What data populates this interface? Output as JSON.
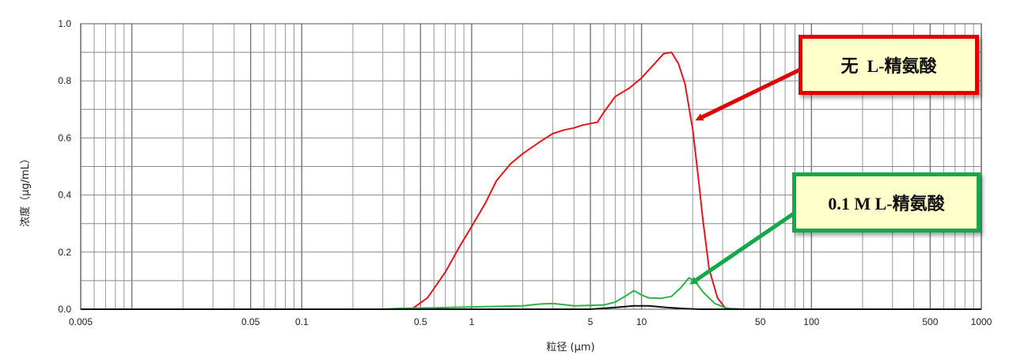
{
  "chart_data": {
    "type": "line",
    "xscale": "log",
    "xlabel": "粒径 (μm)",
    "ylabel": "浓度（μg/mL）",
    "xlim": [
      0.005,
      1000
    ],
    "ylim": [
      0,
      1.0
    ],
    "grid": true,
    "x_ticks": [
      {
        "value": 0.005,
        "label": "0.005"
      },
      {
        "value": 0.05,
        "label": "0.05"
      },
      {
        "value": 0.1,
        "label": "0.1"
      },
      {
        "value": 0.5,
        "label": "0.5"
      },
      {
        "value": 1,
        "label": "1"
      },
      {
        "value": 5,
        "label": "5"
      },
      {
        "value": 10,
        "label": "10"
      },
      {
        "value": 50,
        "label": "50"
      },
      {
        "value": 100,
        "label": "100"
      },
      {
        "value": 500,
        "label": "500"
      },
      {
        "value": 1000,
        "label": "1000"
      }
    ],
    "y_ticks": [
      {
        "value": 0.0,
        "label": "0.0"
      },
      {
        "value": 0.2,
        "label": "0.2"
      },
      {
        "value": 0.4,
        "label": "0.4"
      },
      {
        "value": 0.6,
        "label": "0.6"
      },
      {
        "value": 0.8,
        "label": "0.8"
      },
      {
        "value": 1.0,
        "label": "1.0"
      }
    ],
    "series": [
      {
        "color": "#e8141c",
        "points": [
          [
            0.005,
            0
          ],
          [
            0.3,
            0
          ],
          [
            0.45,
            0.003
          ],
          [
            0.55,
            0.04
          ],
          [
            0.7,
            0.13
          ],
          [
            0.85,
            0.22
          ],
          [
            1.0,
            0.29
          ],
          [
            1.2,
            0.37
          ],
          [
            1.4,
            0.45
          ],
          [
            1.7,
            0.51
          ],
          [
            2.0,
            0.545
          ],
          [
            2.5,
            0.585
          ],
          [
            3.0,
            0.615
          ],
          [
            3.5,
            0.628
          ],
          [
            4.0,
            0.635
          ],
          [
            4.5,
            0.645
          ],
          [
            5.5,
            0.655
          ],
          [
            6.0,
            0.69
          ],
          [
            7.0,
            0.745
          ],
          [
            8.5,
            0.775
          ],
          [
            10.0,
            0.81
          ],
          [
            11.5,
            0.85
          ],
          [
            13.5,
            0.895
          ],
          [
            15.0,
            0.9
          ],
          [
            16.5,
            0.86
          ],
          [
            18.0,
            0.79
          ],
          [
            20.0,
            0.63
          ],
          [
            21.5,
            0.47
          ],
          [
            23.0,
            0.31
          ],
          [
            25.0,
            0.14
          ],
          [
            28.0,
            0.04
          ],
          [
            31.0,
            0.005
          ],
          [
            35.0,
            0
          ],
          [
            1000,
            0
          ]
        ]
      },
      {
        "color": "#2cb34a",
        "points": [
          [
            0.005,
            0
          ],
          [
            0.3,
            0
          ],
          [
            0.38,
            0.003
          ],
          [
            0.6,
            0.005
          ],
          [
            1.0,
            0.008
          ],
          [
            2.0,
            0.012
          ],
          [
            2.5,
            0.018
          ],
          [
            3.0,
            0.02
          ],
          [
            3.5,
            0.016
          ],
          [
            4.0,
            0.012
          ],
          [
            6.0,
            0.015
          ],
          [
            7.0,
            0.025
          ],
          [
            8.0,
            0.045
          ],
          [
            9.0,
            0.065
          ],
          [
            10.0,
            0.05
          ],
          [
            11.0,
            0.04
          ],
          [
            13.0,
            0.038
          ],
          [
            15.0,
            0.045
          ],
          [
            17.0,
            0.075
          ],
          [
            19.0,
            0.11
          ],
          [
            20.5,
            0.1
          ],
          [
            23.0,
            0.06
          ],
          [
            27.0,
            0.02
          ],
          [
            32.0,
            0.003
          ],
          [
            40.0,
            0
          ],
          [
            1000,
            0
          ]
        ]
      },
      {
        "color": "#111111",
        "points": [
          [
            0.005,
            0
          ],
          [
            5.0,
            0
          ],
          [
            7.0,
            0.006
          ],
          [
            9.0,
            0.012
          ],
          [
            11.0,
            0.012
          ],
          [
            14.0,
            0.006
          ],
          [
            18.0,
            0.002
          ],
          [
            22.0,
            0
          ],
          [
            1000,
            0
          ]
        ]
      }
    ],
    "annotations": [
      {
        "id": "callout-red",
        "text": "无  L-精氨酸",
        "color": "#e00000",
        "points_to": [
          20.5,
          0.66
        ]
      },
      {
        "id": "callout-green",
        "text": "0.1 M L-精氨酸",
        "color": "#14a84a",
        "points_to": [
          19.0,
          0.085
        ]
      }
    ]
  }
}
